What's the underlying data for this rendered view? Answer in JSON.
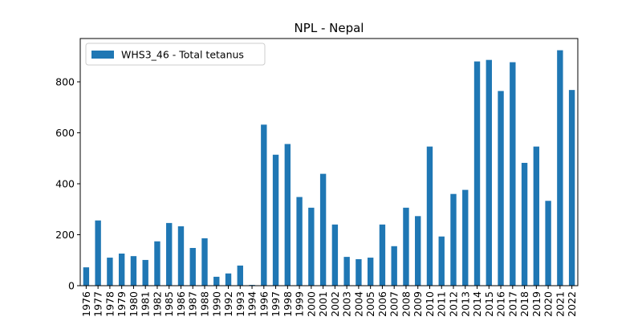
{
  "chart_data": {
    "type": "bar",
    "title": "NPL - Nepal",
    "xlabel": "",
    "ylabel": "",
    "ylim": [
      0,
      970
    ],
    "yticks": [
      0,
      200,
      400,
      600,
      800
    ],
    "grid": false,
    "legend_position": "top-left",
    "bar_color": "#1f77b4",
    "categories": [
      "1976",
      "1977",
      "1978",
      "1979",
      "1980",
      "1981",
      "1982",
      "1985",
      "1986",
      "1987",
      "1988",
      "1990",
      "1992",
      "1993",
      "1994",
      "1996",
      "1997",
      "1998",
      "1999",
      "2000",
      "2001",
      "2002",
      "2003",
      "2004",
      "2005",
      "2006",
      "2007",
      "2008",
      "2009",
      "2010",
      "2011",
      "2012",
      "2013",
      "2014",
      "2015",
      "2016",
      "2017",
      "2018",
      "2019",
      "2020",
      "2021",
      "2022"
    ],
    "series": [
      {
        "name": "WHS3_46 - Total tetanus",
        "values": [
          72,
          256,
          110,
          126,
          116,
          101,
          174,
          246,
          233,
          148,
          186,
          35,
          48,
          79,
          3,
          632,
          514,
          556,
          348,
          306,
          439,
          240,
          113,
          104,
          110,
          240,
          155,
          306,
          273,
          546,
          193,
          360,
          376,
          880,
          886,
          764,
          877,
          482,
          546,
          333,
          924,
          768
        ]
      }
    ]
  }
}
